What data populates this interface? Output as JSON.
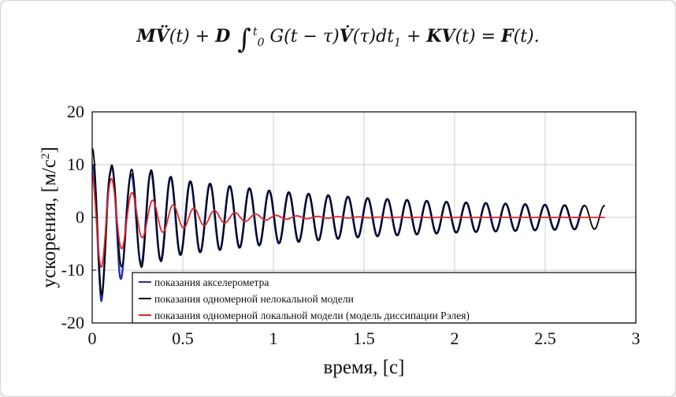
{
  "equation": {
    "m": "M",
    "vdd": "V̈",
    "t1": "(t) + ",
    "d": "D",
    "int_sym": "∫",
    "int_upper": "t",
    "int_lower": "0",
    "g": "G(t − τ)",
    "vd": "V̇",
    "tau": "(τ)dt",
    "sub1": "1",
    "plus": " + ",
    "k": "KV",
    "t2": "(t) = ",
    "f": "F",
    "t3": "(t)."
  },
  "chart_data": {
    "type": "line",
    "title": "",
    "xlabel": "время, [c]",
    "ylabel_base": "ускорения, [м/с",
    "ylabel_sup": "2",
    "ylabel_end": "]",
    "xlim": [
      0,
      3
    ],
    "ylim": [
      -20,
      20
    ],
    "x_ticks": [
      0,
      0.5,
      1,
      1.5,
      2,
      2.5,
      3
    ],
    "x_tick_labels": [
      "0",
      "0.5",
      "1",
      "1.5",
      "2",
      "2.5",
      "3"
    ],
    "y_ticks": [
      20,
      10,
      0,
      -10,
      -20
    ],
    "y_tick_labels": [
      "20",
      "10",
      "0",
      "-10",
      "-20"
    ],
    "grid": true,
    "legend_position": "bottom-right",
    "series": [
      {
        "name": "показания акселерометра",
        "color": "#1f2fb0",
        "frequency_hz": 9.2,
        "x_end": 2.72,
        "peaks": [
          [
            0,
            10
          ],
          [
            0.05,
            16
          ],
          [
            0.1,
            9
          ],
          [
            0.15,
            12.5
          ],
          [
            0.2,
            8
          ],
          [
            0.28,
            9
          ],
          [
            0.5,
            7
          ],
          [
            1,
            5
          ],
          [
            1.5,
            3.7
          ],
          [
            2,
            2.9
          ],
          [
            2.5,
            2.4
          ],
          [
            2.72,
            2.2
          ]
        ]
      },
      {
        "name": "показания одномерной нелокальной модели",
        "color": "#000000",
        "frequency_hz": 9.2,
        "x_end": 2.83,
        "peaks": [
          [
            0,
            13
          ],
          [
            0.05,
            15
          ],
          [
            0.1,
            10
          ],
          [
            0.2,
            9
          ],
          [
            0.28,
            9.5
          ],
          [
            0.5,
            7
          ],
          [
            1,
            5
          ],
          [
            1.5,
            3.7
          ],
          [
            2,
            2.9
          ],
          [
            2.5,
            2.4
          ],
          [
            2.83,
            2.2
          ]
        ]
      },
      {
        "name": "показания одномерной локальной модели (модель диссипации Рэлея)",
        "color": "#e0262b",
        "frequency_hz": 8.8,
        "x_end": 2.83,
        "peaks": [
          [
            0,
            9
          ],
          [
            0.05,
            9.5
          ],
          [
            0.1,
            7.5
          ],
          [
            0.2,
            5
          ],
          [
            0.3,
            3.5
          ],
          [
            0.5,
            2
          ],
          [
            0.75,
            1
          ],
          [
            1,
            0.4
          ],
          [
            1.3,
            0.15
          ],
          [
            1.6,
            0.05
          ],
          [
            2.83,
            0
          ]
        ]
      }
    ]
  }
}
